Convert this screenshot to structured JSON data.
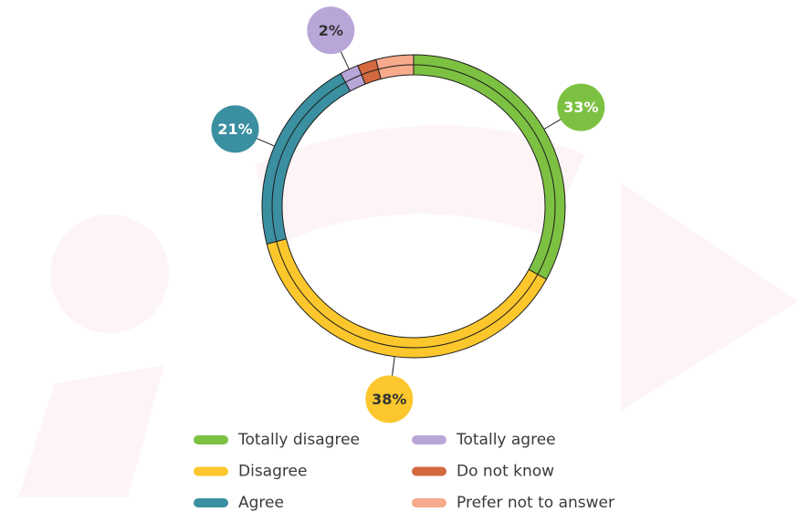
{
  "chart_data": {
    "type": "donut",
    "categories": [
      "Totally disagree",
      "Disagree",
      "Agree",
      "Totally agree",
      "Do not know",
      "Prefer not to answer"
    ],
    "values": [
      33,
      38,
      21,
      2,
      2,
      4
    ],
    "value_labels": [
      "33%",
      "38%",
      "21%",
      "2%",
      null,
      null
    ],
    "colors": [
      "#7dc142",
      "#fcc72c",
      "#3a8fa0",
      "#b9a6d8",
      "#d4683f",
      "#f7aa8c"
    ],
    "legend": "bottom"
  }
}
